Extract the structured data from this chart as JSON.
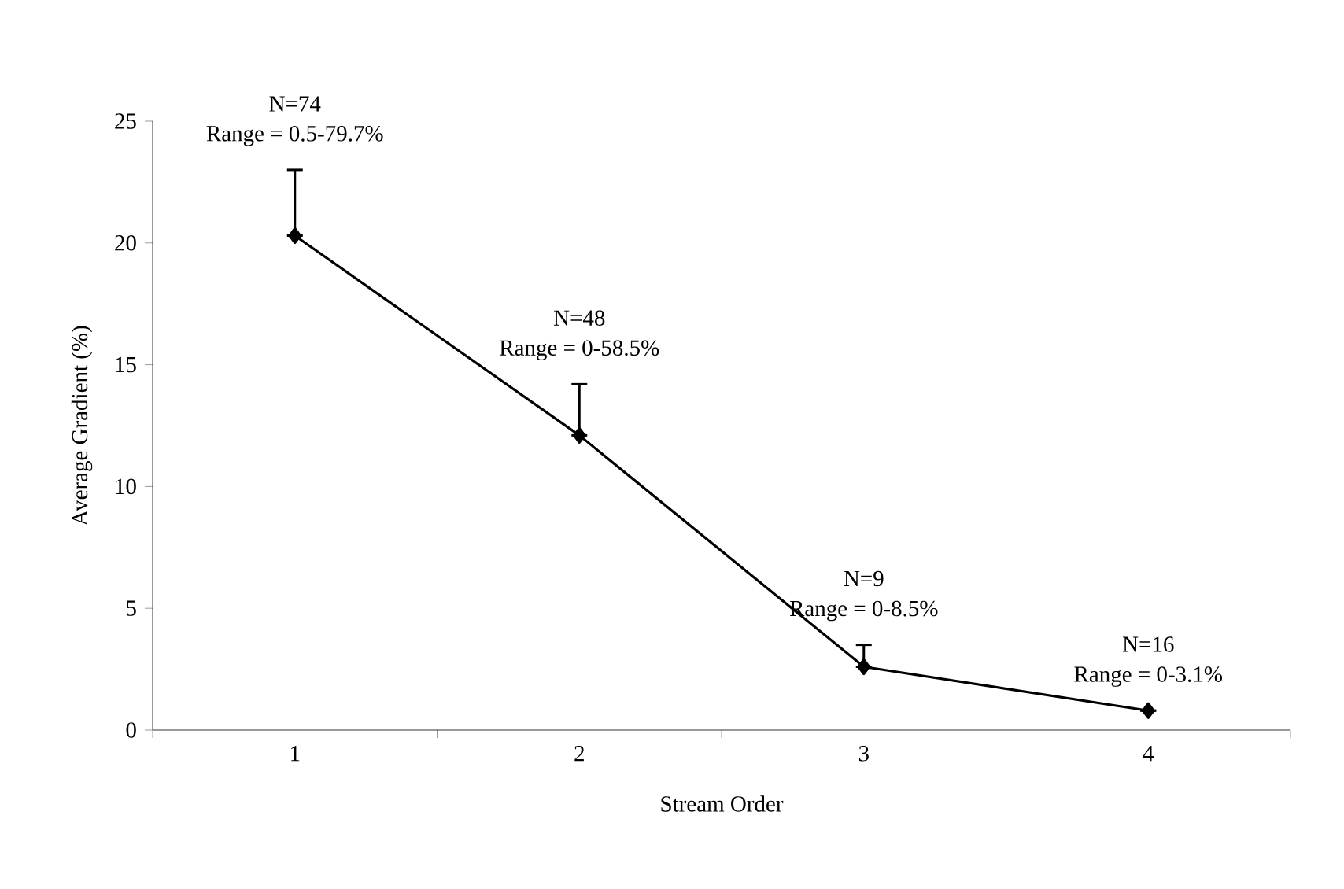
{
  "chart_data": {
    "type": "line",
    "xlabel": "Stream Order",
    "ylabel": "Average Gradient (%)",
    "categories": [
      "1",
      "2",
      "3",
      "4"
    ],
    "values": [
      20.3,
      12.1,
      2.6,
      0.8
    ],
    "errors": [
      [
        20.3,
        23.0
      ],
      [
        12.1,
        14.2
      ],
      [
        2.6,
        3.5
      ],
      null
    ],
    "color": "#000000",
    "marker": "diamond",
    "line_style": "solid",
    "ylim": [
      0,
      25
    ],
    "yticks": [
      0,
      5,
      10,
      15,
      20,
      25
    ],
    "grid": false,
    "annotations": [
      "N=74",
      "Range = 0.5-79.7%",
      "N=48",
      "Range = 0-58.5%",
      "N=9",
      "Range = 0-8.5%",
      "N=16",
      "Range = 0-3.1%"
    ]
  }
}
